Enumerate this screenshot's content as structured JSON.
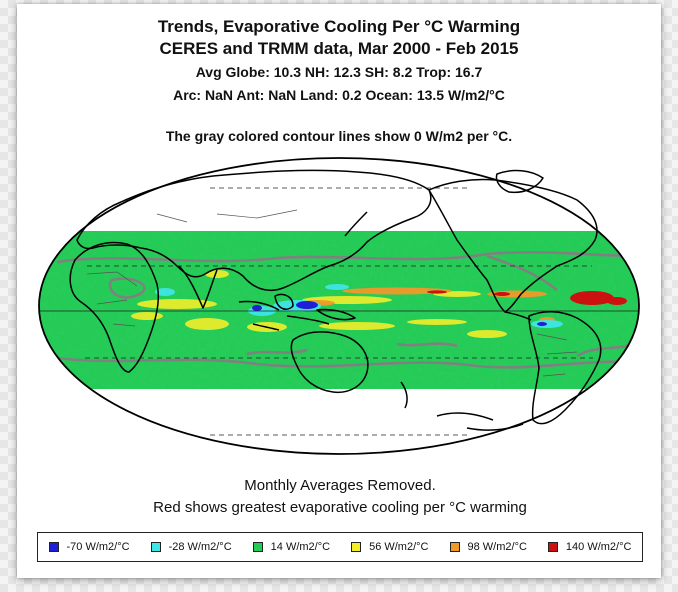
{
  "title_line1": "Trends, Evaporative Cooling Per °C Warming",
  "title_line2": "CERES and TRMM data, Mar 2000 - Feb 2015",
  "stats_line1": "Avg Globe: 10.3  NH: 12.3  SH: 8.2  Trop: 16.7",
  "stats_line2": "Arc: NaN  Ant: NaN  Land: 0.2  Ocean: 13.5 W/m2/°C",
  "contour_note": "The gray colored contour lines show 0 W/m2 per °C.",
  "footer_line1": "Monthly Averages Removed.",
  "footer_line2": "Red shows greatest evaporative cooling per °C warming",
  "legend": [
    {
      "label": "-70 W/m2/°C",
      "color": "#1f1fd8"
    },
    {
      "label": "-28 W/m2/°C",
      "color": "#3fe6e6"
    },
    {
      "label": "14 W/m2/°C",
      "color": "#22cc55"
    },
    {
      "label": "56 W/m2/°C",
      "color": "#f2ee2a"
    },
    {
      "label": "98 W/m2/°C",
      "color": "#f09a2a"
    },
    {
      "label": "140 W/m2/°C",
      "color": "#cc1111"
    }
  ],
  "map_colors": {
    "base_green": "#22cc55",
    "contour_gray": "#808080",
    "coast": "#000000"
  }
}
